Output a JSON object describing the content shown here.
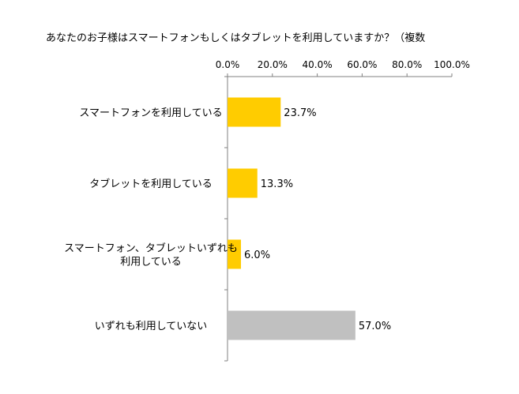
{
  "chart_data": {
    "type": "bar",
    "orientation": "horizontal",
    "title": "あなたのお子様はスマートフォンもしくはタブレットを利用していますか？（複数",
    "xlabel": "",
    "ylabel": "",
    "xlim": [
      0,
      100
    ],
    "x_tick_labels": [
      "0.0%",
      "20.0%",
      "40.0%",
      "60.0%",
      "80.0%",
      "100.0%"
    ],
    "x_ticks": [
      0,
      20,
      40,
      60,
      80,
      100
    ],
    "grid": false,
    "legend": "none",
    "categories": [
      "スマートフォンを利用している",
      "タブレットを利用している",
      "スマートフォン、タブレットいずれも\n利用している",
      "いずれも利用していない"
    ],
    "values": [
      23.7,
      13.3,
      6.0,
      57.0
    ],
    "value_labels": [
      "23.7%",
      "13.3%",
      "6.0%",
      "57.0%"
    ],
    "bar_colors": [
      "#ffcc00",
      "#ffcc00",
      "#ffcc00",
      "#c0c0c0"
    ]
  }
}
